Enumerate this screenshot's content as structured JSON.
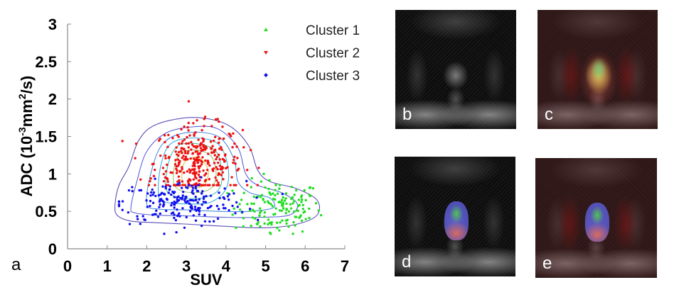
{
  "chart_data": {
    "type": "scatter",
    "title": "",
    "xlabel": "SUV",
    "ylabel_main": "ADC (10",
    "ylabel_sup1": "-3",
    "ylabel_mid": "mm",
    "ylabel_sup2": "2",
    "ylabel_end": "/s)",
    "xlim": [
      0,
      7
    ],
    "ylim": [
      0,
      3
    ],
    "xticks": [
      "0",
      "1",
      "2",
      "3",
      "4",
      "5",
      "6",
      "7"
    ],
    "yticks": [
      "0",
      "0.5",
      "1",
      "1.5",
      "2",
      "2.5",
      "3"
    ],
    "grid": false,
    "legend_position": "top-right",
    "series": [
      {
        "name": "Cluster 1",
        "color": "#22dd22",
        "marker": "triangle-up",
        "n": 150,
        "center": [
          5.3,
          0.55
        ],
        "spread": [
          0.55,
          0.18
        ],
        "xrange": [
          3.5,
          6.4
        ],
        "yrange": [
          0.2,
          1.0
        ]
      },
      {
        "name": "Cluster 2",
        "color": "#ee1111",
        "marker": "triangle-down",
        "n": 330,
        "center": [
          3.3,
          1.15
        ],
        "spread": [
          0.55,
          0.25
        ],
        "xrange": [
          1.2,
          5.3
        ],
        "yrange": [
          0.85,
          2.3
        ]
      },
      {
        "name": "Cluster 3",
        "color": "#1111ee",
        "marker": "diamond",
        "n": 200,
        "center": [
          2.9,
          0.62
        ],
        "spread": [
          0.8,
          0.14
        ],
        "xrange": [
          1.3,
          6.1
        ],
        "yrange": [
          0.2,
          1.3
        ]
      }
    ],
    "contours": [
      {
        "color": "#5a4fb8",
        "points": [
          [
            1.2,
            0.6
          ],
          [
            1.3,
            0.85
          ],
          [
            1.55,
            1.1
          ],
          [
            1.8,
            1.45
          ],
          [
            2.2,
            1.65
          ],
          [
            3.0,
            1.75
          ],
          [
            3.7,
            1.72
          ],
          [
            4.2,
            1.6
          ],
          [
            4.6,
            1.35
          ],
          [
            4.8,
            1.05
          ],
          [
            5.1,
            0.9
          ],
          [
            5.8,
            0.8
          ],
          [
            6.3,
            0.65
          ],
          [
            6.3,
            0.45
          ],
          [
            5.8,
            0.33
          ],
          [
            5.0,
            0.28
          ],
          [
            4.0,
            0.3
          ],
          [
            3.0,
            0.33
          ],
          [
            2.2,
            0.35
          ],
          [
            1.6,
            0.37
          ],
          [
            1.25,
            0.45
          ]
        ]
      },
      {
        "color": "#5b62d8",
        "points": [
          [
            1.6,
            0.55
          ],
          [
            1.75,
            0.9
          ],
          [
            2.0,
            1.3
          ],
          [
            2.5,
            1.55
          ],
          [
            3.2,
            1.63
          ],
          [
            3.8,
            1.6
          ],
          [
            4.3,
            1.35
          ],
          [
            4.5,
            1.0
          ],
          [
            4.8,
            0.85
          ],
          [
            5.4,
            0.75
          ],
          [
            5.8,
            0.6
          ],
          [
            5.6,
            0.45
          ],
          [
            4.8,
            0.42
          ],
          [
            4.0,
            0.42
          ],
          [
            3.0,
            0.44
          ],
          [
            2.2,
            0.45
          ],
          [
            1.7,
            0.48
          ]
        ]
      },
      {
        "color": "#4a8ce0",
        "points": [
          [
            2.0,
            0.6
          ],
          [
            2.1,
            1.0
          ],
          [
            2.4,
            1.4
          ],
          [
            3.0,
            1.55
          ],
          [
            3.8,
            1.5
          ],
          [
            4.2,
            1.2
          ],
          [
            4.3,
            0.9
          ],
          [
            4.6,
            0.75
          ],
          [
            5.1,
            0.68
          ],
          [
            5.2,
            0.55
          ],
          [
            4.6,
            0.5
          ],
          [
            3.8,
            0.5
          ],
          [
            3.0,
            0.52
          ],
          [
            2.3,
            0.53
          ]
        ]
      },
      {
        "color": "#3aaee0",
        "points": [
          [
            2.3,
            0.7
          ],
          [
            2.35,
            1.1
          ],
          [
            2.6,
            1.4
          ],
          [
            3.2,
            1.48
          ],
          [
            3.8,
            1.4
          ],
          [
            4.05,
            1.1
          ],
          [
            4.0,
            0.8
          ],
          [
            3.6,
            0.62
          ],
          [
            3.0,
            0.6
          ],
          [
            2.5,
            0.62
          ]
        ]
      },
      {
        "color": "#40c0b0",
        "points": [
          [
            2.5,
            0.78
          ],
          [
            2.55,
            1.15
          ],
          [
            2.8,
            1.38
          ],
          [
            3.3,
            1.4
          ],
          [
            3.75,
            1.3
          ],
          [
            3.9,
            1.0
          ],
          [
            3.8,
            0.78
          ],
          [
            3.4,
            0.68
          ],
          [
            2.9,
            0.68
          ]
        ]
      },
      {
        "color": "#9cc860",
        "points": [
          [
            2.7,
            0.85
          ],
          [
            2.75,
            1.2
          ],
          [
            3.1,
            1.32
          ],
          [
            3.6,
            1.25
          ],
          [
            3.75,
            1.0
          ],
          [
            3.6,
            0.8
          ],
          [
            3.1,
            0.75
          ]
        ]
      },
      {
        "color": "#e0c040",
        "points": [
          [
            2.9,
            0.9
          ],
          [
            2.95,
            1.15
          ],
          [
            3.3,
            1.22
          ],
          [
            3.55,
            1.05
          ],
          [
            3.45,
            0.85
          ],
          [
            3.1,
            0.82
          ]
        ]
      }
    ]
  },
  "panels": {
    "a": "a",
    "b": "b",
    "c": "c",
    "d": "d",
    "e": "e"
  }
}
